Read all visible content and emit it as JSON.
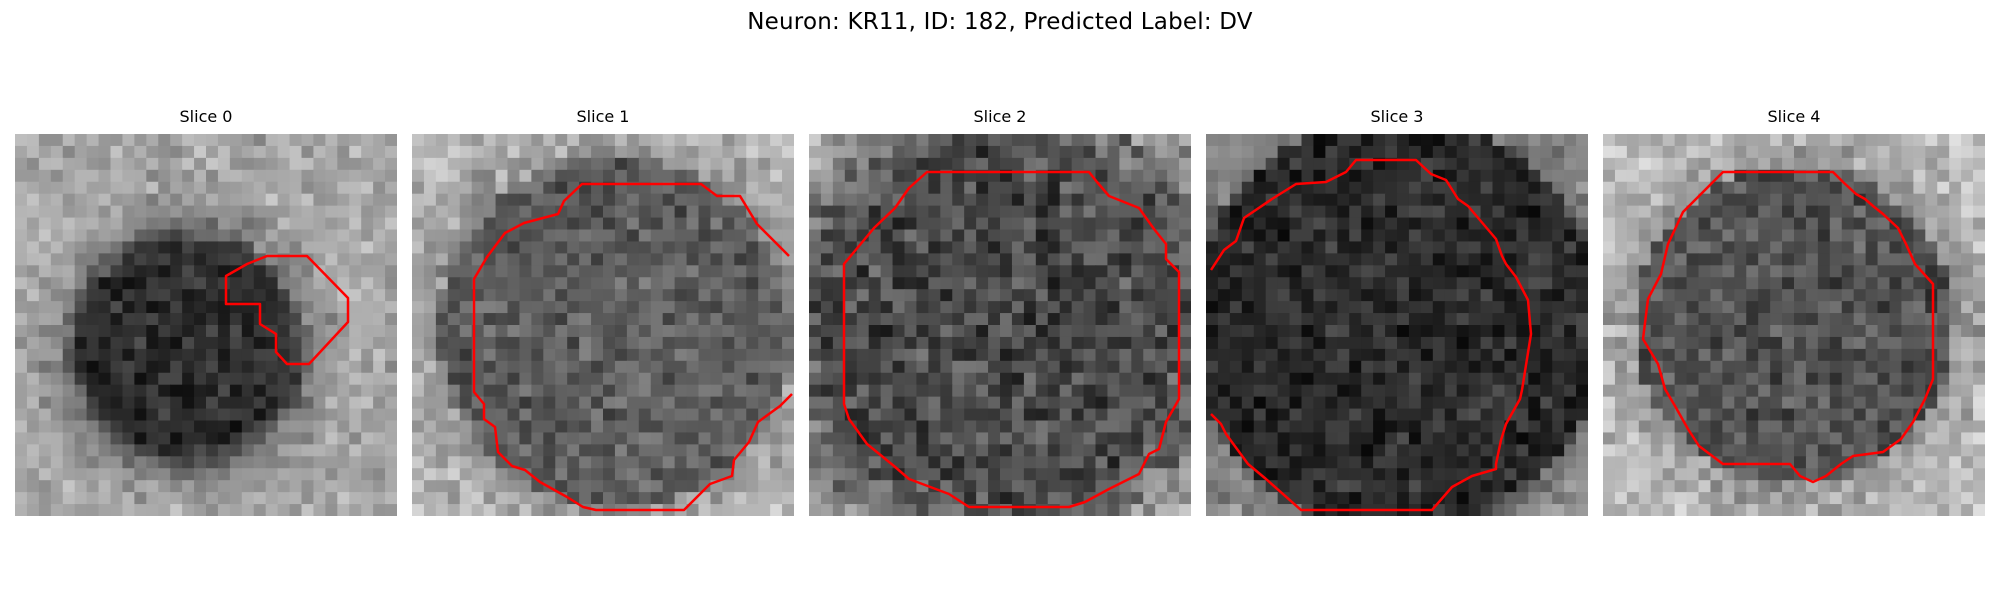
{
  "figure": {
    "title": "Neuron: KR11, ID: 182, Predicted Label: DV",
    "contour_color": "#ff0000",
    "background_color": "#ffffff",
    "colormap": "grayscale"
  },
  "panels": [
    {
      "title": "Slice 0",
      "tone": [
        158,
        120
      ],
      "blob": [
        0.45,
        0.56,
        0.32,
        0.7
      ],
      "mottle": 18
    },
    {
      "title": "Slice 1",
      "tone": [
        175,
        90
      ],
      "blob": [
        0.53,
        0.52,
        0.47,
        0.9
      ],
      "mottle": 22
    },
    {
      "title": "Slice 2",
      "tone": [
        168,
        102
      ],
      "blob": [
        0.5,
        0.5,
        0.6,
        0.55
      ],
      "mottle": 34
    },
    {
      "title": "Slice 3",
      "tone": [
        150,
        115
      ],
      "blob": [
        0.5,
        0.5,
        0.55,
        0.95
      ],
      "mottle": 20
    },
    {
      "title": "Slice 4",
      "tone": [
        178,
        105
      ],
      "blob": [
        0.5,
        0.5,
        0.42,
        0.98
      ],
      "mottle": 26
    }
  ]
}
